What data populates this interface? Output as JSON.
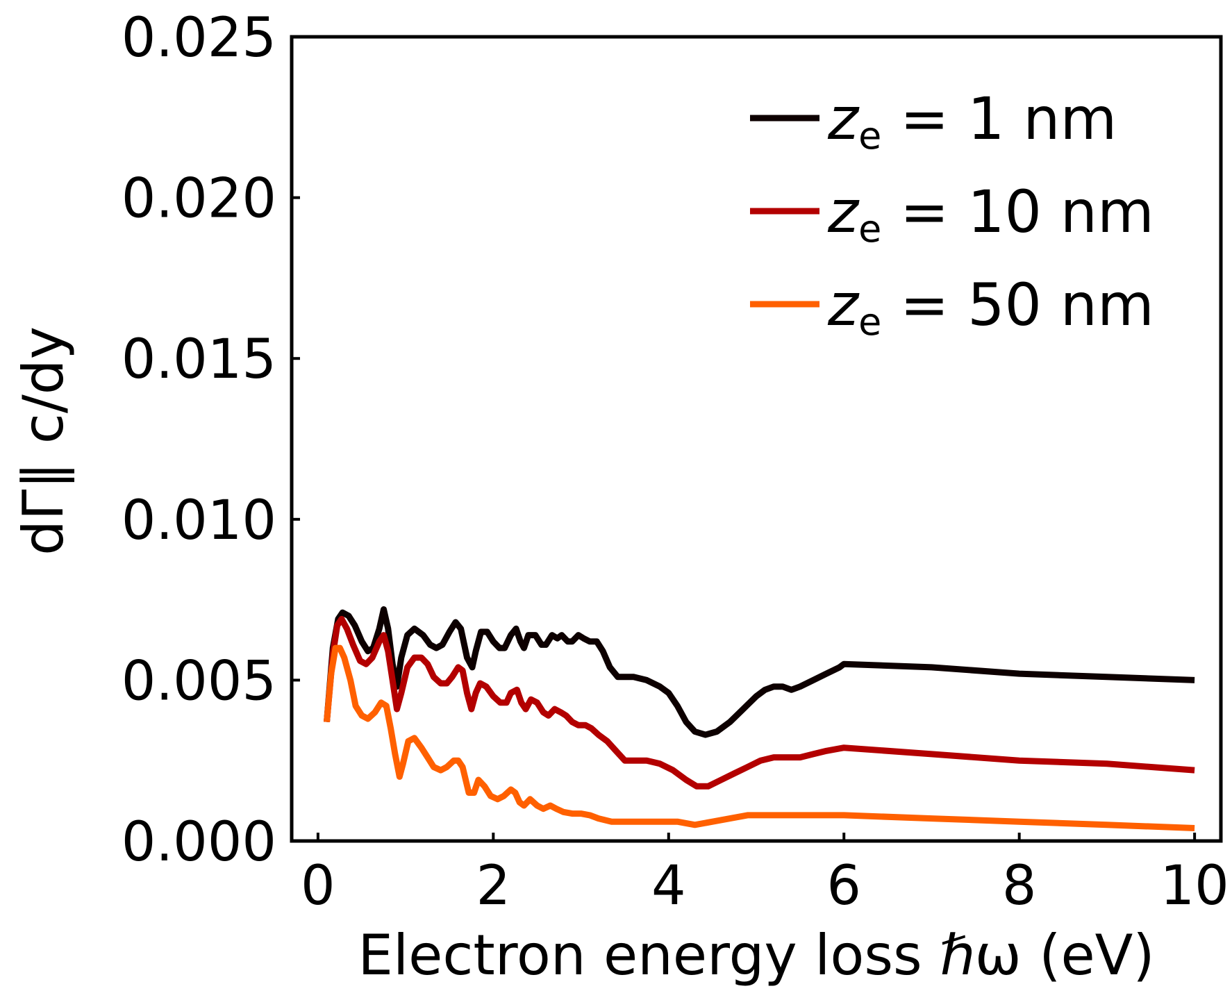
{
  "chart_data": {
    "type": "line",
    "xlabel": "Electron energy loss ℏω (eV)",
    "ylabel": "dΓ∥ c/dy",
    "xlim": [
      -0.3,
      10.3
    ],
    "ylim": [
      0,
      0.025
    ],
    "xticks": [
      0,
      2,
      4,
      6,
      8,
      10
    ],
    "xtick_labels": [
      "0",
      "2",
      "4",
      "6",
      "8",
      "10"
    ],
    "yticks": [
      0,
      0.005,
      0.01,
      0.015,
      0.02,
      0.025
    ],
    "ytick_labels": [
      "0.000",
      "0.005",
      "0.010",
      "0.015",
      "0.020",
      "0.025"
    ],
    "grid": false,
    "legend_position": "top-right",
    "series": [
      {
        "name": "z_e = 1 nm",
        "legend": {
          "var": "z",
          "sub": "e",
          "rest": " = 1 nm"
        },
        "color": "#0d0000",
        "points": [
          [
            0.1,
            0.0037
          ],
          [
            0.17,
            0.006
          ],
          [
            0.23,
            0.0069
          ],
          [
            0.28,
            0.0071
          ],
          [
            0.35,
            0.007
          ],
          [
            0.42,
            0.0067
          ],
          [
            0.5,
            0.0062
          ],
          [
            0.57,
            0.0059
          ],
          [
            0.63,
            0.006
          ],
          [
            0.7,
            0.0066
          ],
          [
            0.75,
            0.0072
          ],
          [
            0.8,
            0.0066
          ],
          [
            0.85,
            0.0055
          ],
          [
            0.9,
            0.0048
          ],
          [
            0.95,
            0.0057
          ],
          [
            1.02,
            0.0064
          ],
          [
            1.1,
            0.0066
          ],
          [
            1.2,
            0.0064
          ],
          [
            1.28,
            0.0061
          ],
          [
            1.35,
            0.006
          ],
          [
            1.42,
            0.0061
          ],
          [
            1.5,
            0.0065
          ],
          [
            1.57,
            0.0068
          ],
          [
            1.63,
            0.0066
          ],
          [
            1.7,
            0.0057
          ],
          [
            1.76,
            0.0054
          ],
          [
            1.8,
            0.0059
          ],
          [
            1.86,
            0.0065
          ],
          [
            1.93,
            0.0065
          ],
          [
            2.0,
            0.0062
          ],
          [
            2.07,
            0.006
          ],
          [
            2.13,
            0.006
          ],
          [
            2.2,
            0.0064
          ],
          [
            2.26,
            0.0066
          ],
          [
            2.31,
            0.0062
          ],
          [
            2.35,
            0.006
          ],
          [
            2.4,
            0.0064
          ],
          [
            2.48,
            0.0064
          ],
          [
            2.55,
            0.0061
          ],
          [
            2.6,
            0.0061
          ],
          [
            2.67,
            0.0064
          ],
          [
            2.73,
            0.0063
          ],
          [
            2.78,
            0.0064
          ],
          [
            2.85,
            0.0062
          ],
          [
            2.9,
            0.0062
          ],
          [
            2.97,
            0.0064
          ],
          [
            3.03,
            0.0063
          ],
          [
            3.1,
            0.0062
          ],
          [
            3.18,
            0.0062
          ],
          [
            3.25,
            0.0059
          ],
          [
            3.33,
            0.0054
          ],
          [
            3.42,
            0.0051
          ],
          [
            3.5,
            0.0051
          ],
          [
            3.6,
            0.0051
          ],
          [
            3.75,
            0.005
          ],
          [
            3.9,
            0.0048
          ],
          [
            4.0,
            0.0046
          ],
          [
            4.1,
            0.0042
          ],
          [
            4.2,
            0.0037
          ],
          [
            4.3,
            0.0034
          ],
          [
            4.42,
            0.0033
          ],
          [
            4.55,
            0.0034
          ],
          [
            4.7,
            0.0037
          ],
          [
            4.85,
            0.0041
          ],
          [
            5.0,
            0.0045
          ],
          [
            5.1,
            0.0047
          ],
          [
            5.2,
            0.0048
          ],
          [
            5.3,
            0.0048
          ],
          [
            5.4,
            0.0047
          ],
          [
            5.5,
            0.0048
          ],
          [
            5.65,
            0.005
          ],
          [
            5.8,
            0.0052
          ],
          [
            5.95,
            0.0054
          ],
          [
            6.0,
            0.0055
          ],
          [
            7.0,
            0.0054
          ],
          [
            8.0,
            0.0052
          ],
          [
            9.0,
            0.0051
          ],
          [
            10.0,
            0.005
          ]
        ]
      },
      {
        "name": "z_e = 10 nm",
        "legend": {
          "var": "z",
          "sub": "e",
          "rest": " = 10 nm"
        },
        "color": "#b30000",
        "points": [
          [
            0.1,
            0.0037
          ],
          [
            0.17,
            0.0058
          ],
          [
            0.22,
            0.0067
          ],
          [
            0.27,
            0.0069
          ],
          [
            0.33,
            0.0066
          ],
          [
            0.4,
            0.0061
          ],
          [
            0.48,
            0.0056
          ],
          [
            0.55,
            0.0055
          ],
          [
            0.62,
            0.0057
          ],
          [
            0.7,
            0.0062
          ],
          [
            0.75,
            0.0064
          ],
          [
            0.8,
            0.0059
          ],
          [
            0.85,
            0.005
          ],
          [
            0.9,
            0.0041
          ],
          [
            0.95,
            0.0046
          ],
          [
            1.02,
            0.0054
          ],
          [
            1.1,
            0.0057
          ],
          [
            1.18,
            0.0057
          ],
          [
            1.25,
            0.0055
          ],
          [
            1.32,
            0.0051
          ],
          [
            1.4,
            0.0049
          ],
          [
            1.47,
            0.0049
          ],
          [
            1.53,
            0.0051
          ],
          [
            1.6,
            0.0054
          ],
          [
            1.65,
            0.0053
          ],
          [
            1.7,
            0.0046
          ],
          [
            1.75,
            0.0041
          ],
          [
            1.8,
            0.0046
          ],
          [
            1.85,
            0.0049
          ],
          [
            1.92,
            0.0048
          ],
          [
            2.0,
            0.0045
          ],
          [
            2.08,
            0.0043
          ],
          [
            2.15,
            0.0043
          ],
          [
            2.2,
            0.0046
          ],
          [
            2.27,
            0.0047
          ],
          [
            2.32,
            0.0043
          ],
          [
            2.37,
            0.0041
          ],
          [
            2.43,
            0.0044
          ],
          [
            2.5,
            0.0043
          ],
          [
            2.57,
            0.004
          ],
          [
            2.63,
            0.0039
          ],
          [
            2.7,
            0.0041
          ],
          [
            2.77,
            0.004
          ],
          [
            2.83,
            0.0039
          ],
          [
            2.9,
            0.0037
          ],
          [
            2.97,
            0.0036
          ],
          [
            3.05,
            0.0036
          ],
          [
            3.12,
            0.0035
          ],
          [
            3.2,
            0.0033
          ],
          [
            3.3,
            0.0031
          ],
          [
            3.4,
            0.0028
          ],
          [
            3.5,
            0.0025
          ],
          [
            3.6,
            0.0025
          ],
          [
            3.75,
            0.0025
          ],
          [
            3.9,
            0.0024
          ],
          [
            4.05,
            0.0022
          ],
          [
            4.2,
            0.0019
          ],
          [
            4.32,
            0.0017
          ],
          [
            4.45,
            0.0017
          ],
          [
            4.6,
            0.0019
          ],
          [
            4.75,
            0.0021
          ],
          [
            4.9,
            0.0023
          ],
          [
            5.05,
            0.0025
          ],
          [
            5.2,
            0.0026
          ],
          [
            5.35,
            0.0026
          ],
          [
            5.5,
            0.0026
          ],
          [
            5.65,
            0.0027
          ],
          [
            5.8,
            0.0028
          ],
          [
            6.0,
            0.0029
          ],
          [
            7.0,
            0.0027
          ],
          [
            8.0,
            0.0025
          ],
          [
            9.0,
            0.0024
          ],
          [
            10.0,
            0.0022
          ]
        ]
      },
      {
        "name": "z_e = 50 nm",
        "legend": {
          "var": "z",
          "sub": "e",
          "rest": " = 50 nm"
        },
        "color": "#ff6000",
        "points": [
          [
            0.1,
            0.0037
          ],
          [
            0.15,
            0.0052
          ],
          [
            0.2,
            0.006
          ],
          [
            0.25,
            0.006
          ],
          [
            0.3,
            0.0057
          ],
          [
            0.37,
            0.005
          ],
          [
            0.43,
            0.0042
          ],
          [
            0.5,
            0.0039
          ],
          [
            0.57,
            0.0038
          ],
          [
            0.65,
            0.004
          ],
          [
            0.72,
            0.0043
          ],
          [
            0.78,
            0.0042
          ],
          [
            0.83,
            0.0035
          ],
          [
            0.88,
            0.0027
          ],
          [
            0.93,
            0.002
          ],
          [
            0.97,
            0.0024
          ],
          [
            1.03,
            0.0031
          ],
          [
            1.1,
            0.0032
          ],
          [
            1.18,
            0.0029
          ],
          [
            1.25,
            0.0026
          ],
          [
            1.32,
            0.0023
          ],
          [
            1.4,
            0.0022
          ],
          [
            1.47,
            0.0023
          ],
          [
            1.55,
            0.0025
          ],
          [
            1.6,
            0.0025
          ],
          [
            1.65,
            0.0023
          ],
          [
            1.72,
            0.0015
          ],
          [
            1.78,
            0.0015
          ],
          [
            1.83,
            0.0019
          ],
          [
            1.9,
            0.0017
          ],
          [
            1.97,
            0.0014
          ],
          [
            2.05,
            0.0013
          ],
          [
            2.12,
            0.0014
          ],
          [
            2.2,
            0.0016
          ],
          [
            2.25,
            0.0015
          ],
          [
            2.3,
            0.0012
          ],
          [
            2.35,
            0.0011
          ],
          [
            2.42,
            0.0013
          ],
          [
            2.5,
            0.0011
          ],
          [
            2.57,
            0.001
          ],
          [
            2.65,
            0.0011
          ],
          [
            2.72,
            0.001
          ],
          [
            2.8,
            0.0009
          ],
          [
            2.9,
            0.00085
          ],
          [
            3.0,
            0.00085
          ],
          [
            3.1,
            0.0008
          ],
          [
            3.2,
            0.0007
          ],
          [
            3.35,
            0.0006
          ],
          [
            3.5,
            0.0006
          ],
          [
            3.7,
            0.0006
          ],
          [
            3.9,
            0.0006
          ],
          [
            4.1,
            0.0006
          ],
          [
            4.3,
            0.0005
          ],
          [
            4.5,
            0.0006
          ],
          [
            4.7,
            0.0007
          ],
          [
            4.9,
            0.0008
          ],
          [
            5.1,
            0.0008
          ],
          [
            5.5,
            0.0008
          ],
          [
            6.0,
            0.0008
          ],
          [
            7.0,
            0.0007
          ],
          [
            8.0,
            0.0006
          ],
          [
            9.0,
            0.0005
          ],
          [
            10.0,
            0.0004
          ]
        ]
      }
    ]
  }
}
